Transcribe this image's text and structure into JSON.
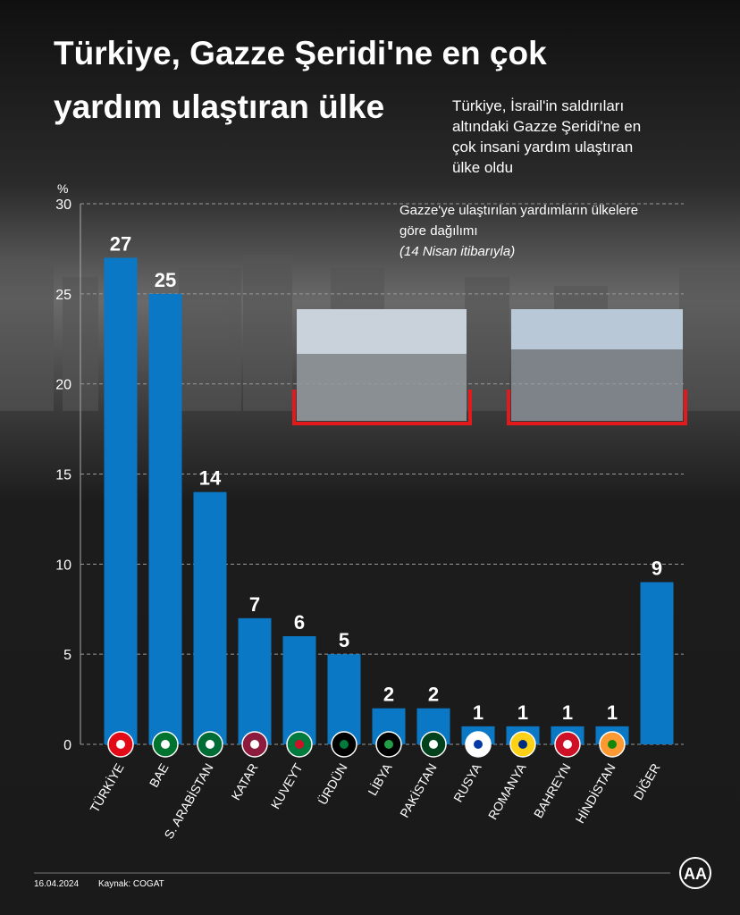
{
  "chart_data": {
    "type": "bar",
    "title_line1": "Türkiye, Gazze Şeridi'ne en çok",
    "title_line2": "yardım ulaştıran ülke",
    "subtitle": [
      "Türkiye, İsrail'in saldırıları",
      "altındaki Gazze Şeridi'ne en",
      "çok insani yardım ulaştıran",
      "ülke oldu"
    ],
    "annotation": [
      "Gazze'ye ulaştırılan yardımların ülkelere",
      "göre dağılımı",
      "(14 Nisan itibarıyla)"
    ],
    "y_unit": "%",
    "categories": [
      "TÜRKİYE",
      "BAE",
      "S. ARABİSTAN",
      "KATAR",
      "KUVEYT",
      "ÜRDÜN",
      "LİBYA",
      "PAKİSTAN",
      "RUSYA",
      "ROMANYA",
      "BAHREYN",
      "HİNDİSTAN",
      "DİĞER"
    ],
    "values": [
      27,
      25,
      14,
      7,
      6,
      5,
      2,
      2,
      1,
      1,
      1,
      1,
      9
    ],
    "color": "#0a78c4",
    "ylim": [
      0,
      30
    ],
    "yticks": [
      0,
      5,
      10,
      15,
      20,
      25,
      30
    ],
    "grid": true,
    "date": "16.04.2024",
    "source": "Kaynak: COGAT",
    "logo": "AA"
  }
}
